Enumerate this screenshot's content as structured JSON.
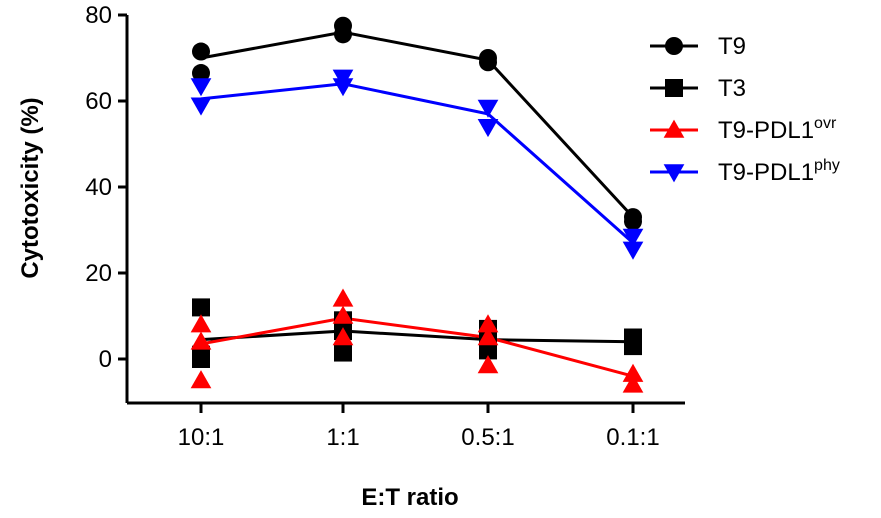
{
  "chart_data": {
    "type": "line",
    "xlabel": "E:T ratio",
    "ylabel": "Cytotoxicity (%)",
    "ylim": [
      -10,
      80
    ],
    "y_ticks": [
      0,
      20,
      40,
      60,
      80
    ],
    "categories": [
      "10:1",
      "1:1",
      "0.5:1",
      "0.1:1"
    ],
    "legend": {
      "placement": "top-right"
    },
    "grid": false,
    "series": [
      {
        "name": "T9",
        "name_base": "T9",
        "name_sup": "",
        "marker": "circle",
        "color": "#000000",
        "mean": [
          70,
          76,
          69.5,
          33
        ],
        "replicates": [
          [
            71.5,
            66.5
          ],
          [
            77.5,
            75.5
          ],
          [
            70,
            69
          ],
          [
            33,
            32
          ]
        ]
      },
      {
        "name": "T3",
        "name_base": "T3",
        "name_sup": "",
        "marker": "square",
        "color": "#000000",
        "mean": [
          4.5,
          6.5,
          4.5,
          4
        ],
        "replicates": [
          [
            12,
            1,
            0
          ],
          [
            9,
            6.5,
            1.5
          ],
          [
            7,
            5,
            2
          ],
          [
            5,
            3
          ]
        ]
      },
      {
        "name": "T9-PDL1ovr",
        "name_base": "T9-PDL1",
        "name_sup": "ovr",
        "marker": "triangle-up",
        "color": "#ff0000",
        "mean": [
          3.5,
          9.5,
          5,
          -4
        ],
        "replicates": [
          [
            8,
            4,
            -5
          ],
          [
            14,
            10,
            5
          ],
          [
            8,
            5,
            -1.5
          ],
          [
            -3.5,
            -6
          ]
        ]
      },
      {
        "name": "T9-PDL1phy",
        "name_base": "T9-PDL1",
        "name_sup": "phy",
        "marker": "triangle-down",
        "color": "#0000ff",
        "mean": [
          60.5,
          64,
          57,
          27
        ],
        "replicates": [
          [
            63.5,
            59
          ],
          [
            65.5,
            63.5
          ],
          [
            58.5,
            54
          ],
          [
            28.5,
            25.5
          ]
        ]
      }
    ]
  }
}
